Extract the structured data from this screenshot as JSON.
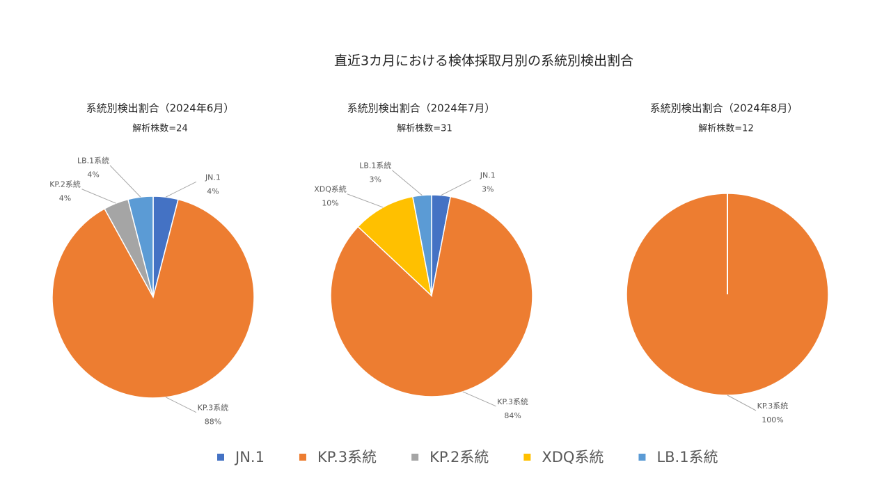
{
  "title": "直近3カ月における検体採取月別の系統別検出割合",
  "legend": [
    {
      "name": "JN.1",
      "color": "#4472c4"
    },
    {
      "name": "KP.3系統",
      "color": "#ed7d31"
    },
    {
      "name": "KP.2系統",
      "color": "#a5a5a5"
    },
    {
      "name": "XDQ系統",
      "color": "#ffc000"
    },
    {
      "name": "LB.1系統",
      "color": "#5b9bd5"
    }
  ],
  "chart_data": [
    {
      "type": "pie",
      "title": "系統別検出割合（2024年6月）",
      "subtitle": "解析株数=24",
      "categories": [
        "JN.1",
        "KP.3系統",
        "KP.2系統",
        "LB.1系統"
      ],
      "values": [
        4,
        88,
        4,
        4
      ],
      "value_labels": [
        "4%",
        "88%",
        "4%",
        "4%"
      ],
      "colors": [
        "#4472c4",
        "#ed7d31",
        "#a5a5a5",
        "#5b9bd5"
      ]
    },
    {
      "type": "pie",
      "title": "系統別検出割合（2024年7月）",
      "subtitle": "解析株数=31",
      "categories": [
        "JN.1",
        "KP.3系統",
        "XDQ系統",
        "LB.1系統"
      ],
      "values": [
        3,
        84,
        10,
        3
      ],
      "value_labels": [
        "3%",
        "84%",
        "10%",
        "3%"
      ],
      "colors": [
        "#4472c4",
        "#ed7d31",
        "#ffc000",
        "#5b9bd5"
      ]
    },
    {
      "type": "pie",
      "title": "系統別検出割合（2024年8月）",
      "subtitle": "解析株数=12",
      "categories": [
        "KP.3系統"
      ],
      "values": [
        100
      ],
      "value_labels": [
        "100%"
      ],
      "colors": [
        "#ed7d31"
      ]
    }
  ]
}
